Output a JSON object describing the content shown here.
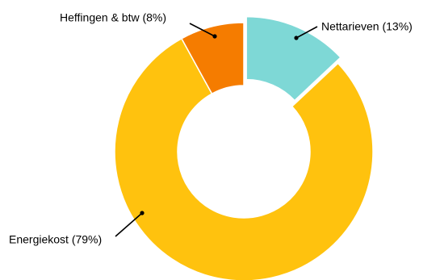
{
  "chart_data": {
    "type": "pie",
    "variant": "donut",
    "title": "",
    "slices": [
      {
        "label": "Nettarieven (13%)",
        "value": 13,
        "color": "#7ED8D6",
        "exploded": true
      },
      {
        "label": "Energiekost (79%)",
        "value": 79,
        "color": "#FFC20E",
        "exploded": false
      },
      {
        "label": "Heffingen & btw (8%)",
        "value": 8,
        "color": "#F57C00",
        "exploded": false
      }
    ],
    "legend": "none",
    "start_angle": "12 o'clock",
    "direction": "clockwise"
  }
}
